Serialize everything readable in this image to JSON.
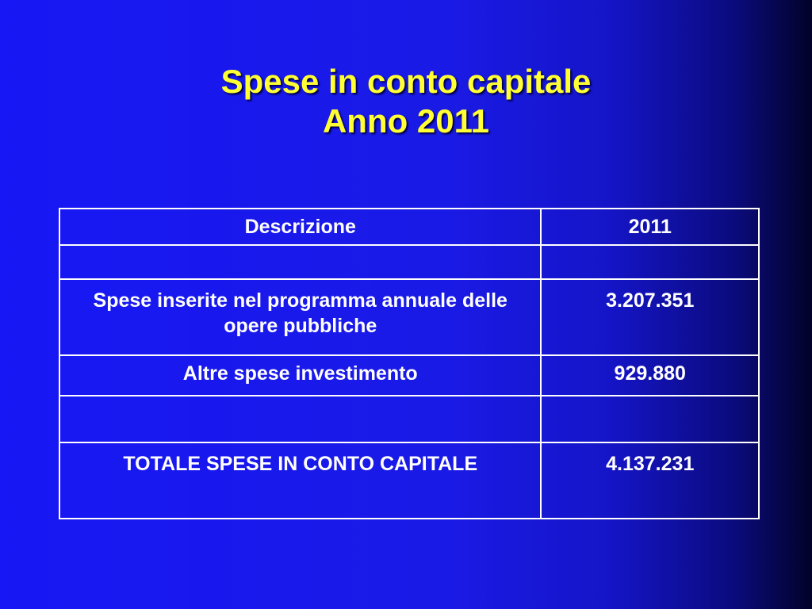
{
  "title": {
    "line1": "Spese in conto capitale",
    "line2": "Anno 2011"
  },
  "table": {
    "headers": [
      "Descrizione",
      "2011"
    ],
    "rows": [
      [
        "",
        ""
      ],
      [
        "Spese inserite nel programma annuale delle opere pubbliche",
        "3.207.351"
      ],
      [
        "Altre spese investimento",
        "929.880"
      ],
      [
        "",
        ""
      ],
      [
        "TOTALE SPESE IN CONTO CAPITALE",
        "4.137.231"
      ]
    ]
  },
  "colors": {
    "background": "#1a1ae6",
    "title": "#ffff33",
    "table_text": "#ffffff",
    "table_border": "#ffffff"
  }
}
